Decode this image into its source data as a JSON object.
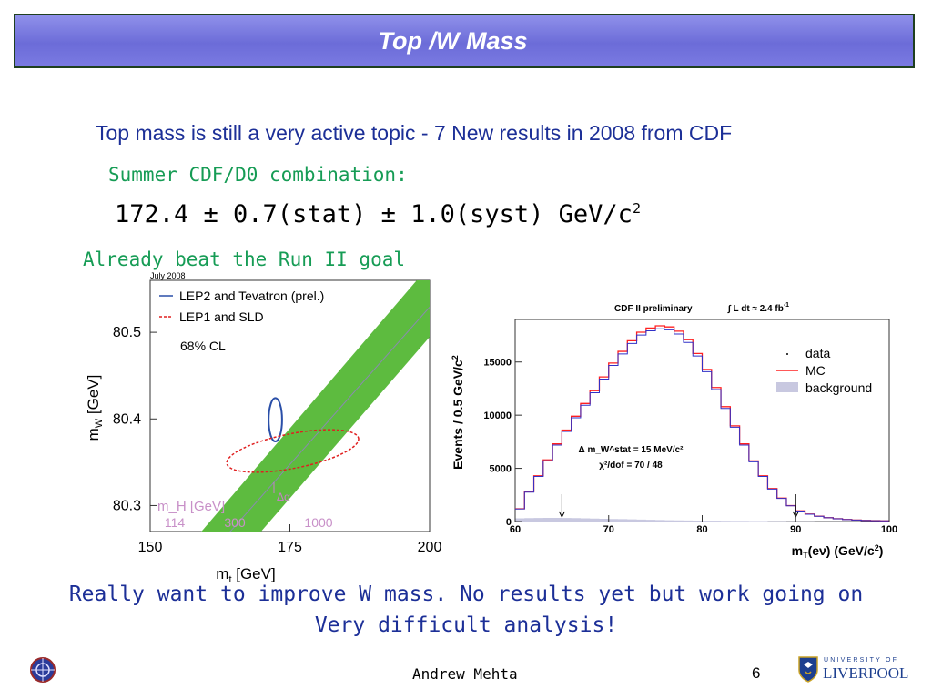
{
  "slide": {
    "title": "Top /W Mass",
    "intro": "Top mass is still a very active topic - 7 New results in 2008 from CDF",
    "combo_label": "Summer CDF/D0 combination:",
    "combo_result": "172.4 ± 0.7(stat) ± 1.0(syst) GeV/c",
    "combo_exp": "2",
    "goal_note": "Already beat the Run II goal",
    "closing_line1": "Really want to improve W mass. No results yet but work going on",
    "closing_line2": "Very difficult analysis!",
    "author": "Andrew Mehta",
    "page_number": "6",
    "logo_university": "UNIVERSITY OF",
    "logo_name": "LIVERPOOL"
  },
  "chart_data": [
    {
      "type": "scatter",
      "date_label": "July 2008",
      "xlabel": "m_t [GeV]",
      "ylabel": "m_W [GeV]",
      "xlim": [
        150,
        200
      ],
      "ylim": [
        80.27,
        80.56
      ],
      "x_ticks": [
        "150",
        "175",
        "200"
      ],
      "y_ticks": [
        "80.3",
        "80.4",
        "80.5"
      ],
      "legend": [
        {
          "name": "LEP2 and Tevatron (prel.)",
          "color": "#2a4fa8"
        },
        {
          "name": "LEP1 and SLD",
          "color": "#e02020"
        }
      ],
      "cl_text": "68% CL",
      "band_color": "#5dbb3f",
      "mh_label": "m_H [GeV]",
      "mh_values": [
        "114",
        "300",
        "1000"
      ],
      "delta_alpha": "Δα",
      "ellipses": [
        {
          "name": "LEP2 and Tevatron (prel.)",
          "cx": 172.4,
          "cy": 80.399,
          "rx": 1.2,
          "ry": 0.025
        },
        {
          "name": "LEP1 and SLD",
          "cx": 175.5,
          "cy": 80.363,
          "rx": 12,
          "ry": 0.02
        }
      ]
    },
    {
      "type": "line",
      "title": "CDF II preliminary",
      "luminosity": "∫ L dt ≈ 2.4 fb",
      "luminosity_exp": "-1",
      "xlabel": "m_T(eν) (GeV/c²)",
      "ylabel": "Events / 0.5 GeV/c²",
      "xlim": [
        60,
        100
      ],
      "ylim": [
        0,
        19000
      ],
      "x_ticks": [
        60,
        70,
        80,
        90,
        100
      ],
      "y_ticks": [
        0,
        5000,
        10000,
        15000
      ],
      "legend": [
        {
          "name": "data",
          "color": "#000000"
        },
        {
          "name": "MC",
          "color": "#ff2020"
        },
        {
          "name": "background",
          "color": "#c8c8e0"
        }
      ],
      "annotation_1": "Δ m_W^stat = 15 MeV/c²",
      "annotation_2": "χ²/dof = 70 / 48",
      "fit_range": [
        65,
        90
      ],
      "x": [
        60,
        61,
        62,
        63,
        64,
        65,
        66,
        67,
        68,
        69,
        70,
        71,
        72,
        73,
        74,
        75,
        76,
        77,
        78,
        79,
        80,
        81,
        82,
        83,
        84,
        85,
        86,
        87,
        88,
        89,
        90,
        91,
        92,
        93,
        94,
        95,
        96,
        97,
        98,
        99,
        100
      ],
      "series": [
        {
          "name": "MC",
          "values": [
            1200,
            2800,
            4300,
            5800,
            7300,
            8600,
            9900,
            11100,
            12300,
            13600,
            14900,
            16000,
            17000,
            17800,
            18200,
            18400,
            18300,
            17900,
            17100,
            15800,
            14300,
            12600,
            10800,
            9000,
            7300,
            5700,
            4300,
            3100,
            2200,
            1500,
            1000,
            700,
            500,
            360,
            260,
            190,
            140,
            100,
            80,
            60,
            50
          ]
        },
        {
          "name": "background",
          "values": [
            300,
            320,
            330,
            340,
            340,
            330,
            320,
            300,
            280,
            260,
            240,
            220,
            200,
            180,
            160,
            140,
            120,
            110,
            100,
            90,
            80,
            70,
            60,
            55,
            50,
            45,
            40,
            35,
            30,
            25,
            20,
            18,
            16,
            14,
            12,
            10,
            8,
            6,
            5,
            4,
            3
          ]
        }
      ]
    }
  ]
}
